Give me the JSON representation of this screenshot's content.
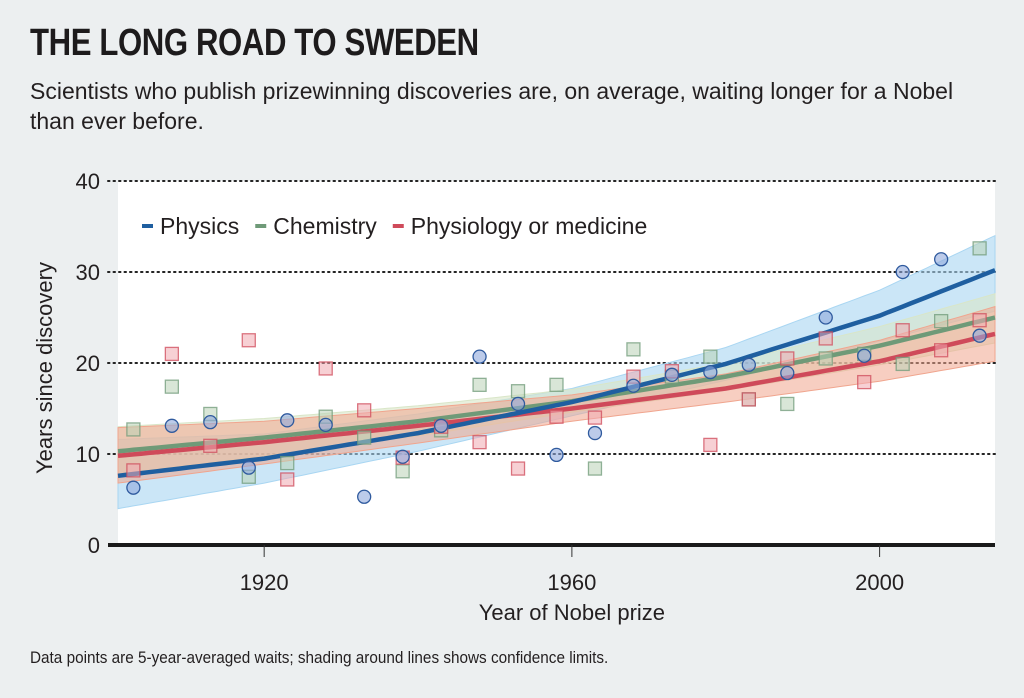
{
  "header": {
    "title": "THE LONG ROAD TO SWEDEN",
    "subtitle": "Scientists who publish prizewinning discoveries are, on average, waiting longer for a Nobel than ever before."
  },
  "footnote": "Data points are 5-year-averaged waits; shading around lines shows confidence limits.",
  "colors": {
    "physics": "#1f5fa0",
    "chemistry": "#6f9a78",
    "medicine": "#cf4a5a",
    "physics_band": "#a9d6f2",
    "chemistry_band": "#d9e6c8",
    "medicine_band": "#f0a58e",
    "plot_bg": "#ffffff",
    "page_bg": "#eceff0"
  },
  "chart_data": {
    "type": "scatter",
    "title": "THE LONG ROAD TO SWEDEN",
    "xlabel": "Year of Nobel prize",
    "ylabel": "Years since discovery",
    "xlim": [
      1901,
      2015
    ],
    "ylim": [
      0,
      40
    ],
    "xticks": [
      1920,
      1960,
      2000
    ],
    "yticks": [
      0,
      10,
      20,
      30,
      40
    ],
    "grid": "horizontal dotted",
    "legend": "top-left",
    "x": [
      1903,
      1908,
      1913,
      1918,
      1923,
      1928,
      1933,
      1938,
      1943,
      1948,
      1953,
      1958,
      1963,
      1968,
      1973,
      1978,
      1983,
      1988,
      1993,
      1998,
      2003,
      2008,
      2013
    ],
    "series": [
      {
        "name": "Physics",
        "marker": "circle",
        "values": [
          6.3,
          13.1,
          13.5,
          8.5,
          13.7,
          13.2,
          5.3,
          9.7,
          13.1,
          20.7,
          15.5,
          9.9,
          12.3,
          17.5,
          18.7,
          19.0,
          19.8,
          18.9,
          25.0,
          20.8,
          30.0,
          31.4,
          23.0
        ],
        "trend": {
          "x": [
            1901,
            1920,
            1940,
            1960,
            1980,
            2000,
            2015
          ],
          "y": [
            7.6,
            9.5,
            12.3,
            15.7,
            19.9,
            25.2,
            30.2
          ]
        },
        "band_upper": [
          4.0,
          6.8,
          10.3,
          14.2,
          18.1,
          22.4,
          25.7
        ],
        "band_lower": [
          11.6,
          12.2,
          14.4,
          17.2,
          21.7,
          28.0,
          34.0
        ]
      },
      {
        "name": "Chemistry",
        "marker": "square",
        "values": [
          12.7,
          17.4,
          14.4,
          7.5,
          9.0,
          14.1,
          11.8,
          8.1,
          12.6,
          17.6,
          16.9,
          17.6,
          8.4,
          21.5,
          18.5,
          20.7,
          16.0,
          15.5,
          20.5,
          21.0,
          19.9,
          24.6,
          32.6
        ],
        "trend": {
          "x": [
            1901,
            1920,
            1940,
            1960,
            1980,
            2000,
            2015
          ],
          "y": [
            10.3,
            11.8,
            13.6,
            15.8,
            18.5,
            21.9,
            25.0
          ]
        },
        "band_upper": [
          7.8,
          9.8,
          12.0,
          14.6,
          17.0,
          19.8,
          22.2
        ],
        "band_lower": [
          13.0,
          13.9,
          15.3,
          17.1,
          20.0,
          24.0,
          27.6
        ]
      },
      {
        "name": "Physiology or medicine",
        "marker": "square",
        "values": [
          8.2,
          21.0,
          10.9,
          22.5,
          7.2,
          19.4,
          14.8,
          9.6,
          13.0,
          11.3,
          8.4,
          14.1,
          14.0,
          18.5,
          19.1,
          11.0,
          16.0,
          20.5,
          22.7,
          17.9,
          23.6,
          21.4,
          24.7
        ],
        "trend": {
          "x": [
            1901,
            1920,
            1940,
            1960,
            1980,
            2000,
            2015
          ],
          "y": [
            9.8,
            11.3,
            13.1,
            15.0,
            17.2,
            20.2,
            23.2
          ]
        },
        "band_upper": [
          6.8,
          8.9,
          11.2,
          13.6,
          15.7,
          18.0,
          20.2
        ],
        "band_lower": [
          12.9,
          13.6,
          15.0,
          16.5,
          18.8,
          22.5,
          26.2
        ]
      }
    ]
  }
}
